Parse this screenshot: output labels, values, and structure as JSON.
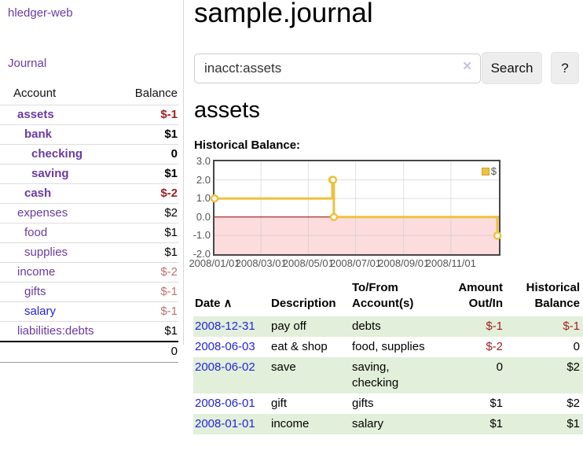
{
  "colors": {
    "link_purple": "#6a3aa2",
    "link_blue": "#2424dd",
    "negative_strong": "#9d1f1f",
    "negative_soft": "#c17070",
    "row_stripe_green": "#e2efda",
    "chart_line_yellow": "#edc240",
    "negative_region_pink": "#fcdcdc",
    "zero_line_red": "#8b0000"
  },
  "sidebar": {
    "brand": "hledger-web",
    "journal_link": "Journal",
    "accounts": {
      "col_account": "Account",
      "col_balance": "Balance",
      "rows": [
        {
          "name": "assets",
          "indent": 1,
          "bold": true,
          "balance": "$-1",
          "negative": true
        },
        {
          "name": "bank",
          "indent": 2,
          "bold": true,
          "balance": "$1"
        },
        {
          "name": "checking",
          "indent": 3,
          "bold": true,
          "balance": "0"
        },
        {
          "name": "saving",
          "indent": 3,
          "bold": true,
          "balance": "$1"
        },
        {
          "name": "cash",
          "indent": 2,
          "bold": true,
          "balance": "$-2",
          "negative": true
        },
        {
          "name": "expenses",
          "indent": 1,
          "bold": false,
          "balance": "$2"
        },
        {
          "name": "food",
          "indent": 2,
          "bold": false,
          "balance": "$1"
        },
        {
          "name": "supplies",
          "indent": 2,
          "bold": false,
          "balance": "$1"
        },
        {
          "name": "income",
          "indent": 1,
          "bold": false,
          "balance": "$-2",
          "negative": true
        },
        {
          "name": "gifts",
          "indent": 2,
          "bold": false,
          "balance": "$-1",
          "negative": true
        },
        {
          "name": "salary",
          "indent": 2,
          "bold": false,
          "balance": "$-1",
          "negative": true,
          "blue": true
        },
        {
          "name": "liabilities:debts",
          "indent": 1,
          "bold": false,
          "balance": "$1"
        }
      ],
      "total": "0"
    }
  },
  "main": {
    "title": "sample.journal",
    "search": {
      "value": "inacct:assets",
      "clear_icon": "×",
      "button": "Search",
      "help_button": "?"
    },
    "account_heading": "assets",
    "chart_label": "Historical Balance:"
  },
  "chart_data": {
    "type": "line",
    "style": "steps",
    "title": "Historical Balance:",
    "legend": "$",
    "legend_position": "top-right",
    "grid": true,
    "ylim": [
      -2,
      3
    ],
    "xlim_days": [
      0,
      367
    ],
    "y_ticks": [
      {
        "label": "3.0",
        "value": 3
      },
      {
        "label": "2.0",
        "value": 2
      },
      {
        "label": "1.0",
        "value": 1
      },
      {
        "label": "0.0",
        "value": 0
      },
      {
        "label": "-1.0",
        "value": -1
      },
      {
        "label": "-2.0",
        "value": -2
      }
    ],
    "x_ticks": [
      {
        "label": "2008/01/01",
        "day": 0
      },
      {
        "label": "2008/03/01",
        "day": 60
      },
      {
        "label": "2008/05/01",
        "day": 121
      },
      {
        "label": "2008/07/01",
        "day": 182
      },
      {
        "label": "2008/09/01",
        "day": 244
      },
      {
        "label": "2008/11/01",
        "day": 305
      }
    ],
    "series": [
      {
        "name": "$",
        "color": "#edc240",
        "points": [
          {
            "date": "2008-01-01",
            "day": 0,
            "value": 1
          },
          {
            "date": "2008-06-01",
            "day": 152,
            "value": 2
          },
          {
            "date": "2008-06-02",
            "day": 153,
            "value": 2
          },
          {
            "date": "2008-06-03",
            "day": 154,
            "value": 0
          },
          {
            "date": "2008-12-31",
            "day": 365,
            "value": -1
          }
        ]
      }
    ],
    "negative_region_color": "#fcdcdc",
    "zero_line_color": "#8b0000"
  },
  "transactions": {
    "sort_icon": "∧",
    "headers": {
      "date": "Date",
      "description": "Description",
      "account": "To/From\nAccount(s)",
      "amount": "Amount\nOut/In",
      "balance": "Historical\nBalance"
    },
    "rows": [
      {
        "date": "2008-12-31",
        "description": "pay off",
        "accounts": "debts",
        "amount": "$-1",
        "amount_negative": true,
        "balance": "$-1",
        "balance_negative": true
      },
      {
        "date": "2008-06-03",
        "description": "eat & shop",
        "accounts": "food, supplies",
        "amount": "$-2",
        "amount_negative": true,
        "balance": "0",
        "balance_negative": false
      },
      {
        "date": "2008-06-02",
        "description": "save",
        "accounts": "saving, checking",
        "amount": "0",
        "amount_negative": false,
        "balance": "$2",
        "balance_negative": false
      },
      {
        "date": "2008-06-01",
        "description": "gift",
        "accounts": "gifts",
        "amount": "$1",
        "amount_negative": false,
        "balance": "$2",
        "balance_negative": false
      },
      {
        "date": "2008-01-01",
        "description": "income",
        "accounts": "salary",
        "amount": "$1",
        "amount_negative": false,
        "balance": "$1",
        "balance_negative": false
      }
    ]
  }
}
